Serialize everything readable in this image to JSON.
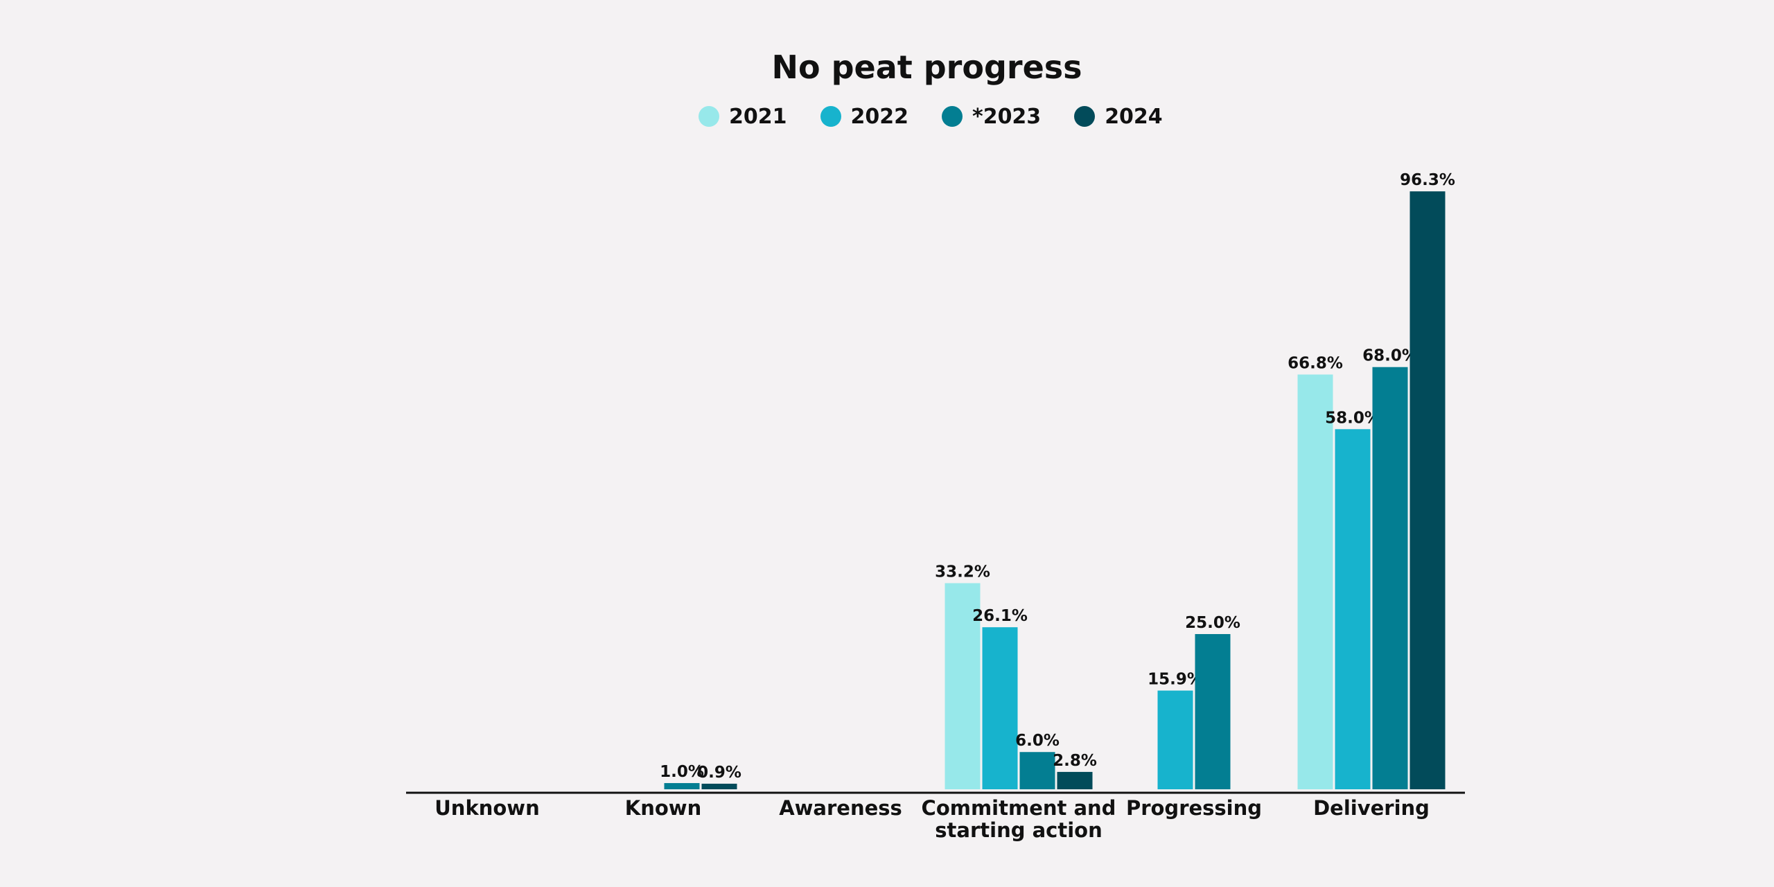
{
  "chart_data": {
    "type": "bar",
    "title": "No peat progress",
    "legend": "top-center",
    "categories": [
      "Unknown",
      "Known",
      "Awareness",
      "Commitment and starting action",
      "Progressing",
      "Delivering"
    ],
    "category_lines": [
      [
        "Unknown"
      ],
      [
        "Known"
      ],
      [
        "Awareness"
      ],
      [
        "Commitment and",
        "starting action"
      ],
      [
        "Progressing"
      ],
      [
        "Delivering"
      ]
    ],
    "series": [
      {
        "name": "2021",
        "color": "#97e8ea",
        "values": [
          null,
          null,
          null,
          33.2,
          null,
          66.8
        ],
        "labels": [
          null,
          null,
          null,
          "33.2%",
          null,
          "66.8%"
        ]
      },
      {
        "name": "2022",
        "color": "#17b3cd",
        "values": [
          null,
          null,
          null,
          26.1,
          15.9,
          58.0
        ],
        "labels": [
          null,
          null,
          null,
          "26.1%",
          "15.9%",
          "58.0%"
        ]
      },
      {
        "name": "*2023",
        "color": "#037e92",
        "values": [
          null,
          1.0,
          null,
          6.0,
          25.0,
          68.0
        ],
        "labels": [
          null,
          "1.0%",
          null,
          "6.0%",
          "25.0%",
          "68.0%"
        ]
      },
      {
        "name": "2024",
        "color": "#024b5a",
        "values": [
          null,
          0.9,
          null,
          2.8,
          null,
          96.3
        ],
        "labels": [
          null,
          "0.9%",
          null,
          "2.8%",
          null,
          "96.3%"
        ]
      }
    ],
    "ylim": [
      0,
      100
    ],
    "grid": false
  }
}
